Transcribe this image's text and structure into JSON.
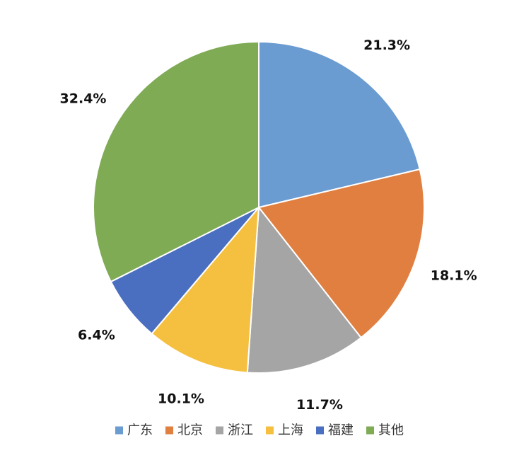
{
  "chart_data": {
    "type": "pie",
    "title": "",
    "slices": [
      {
        "name": "广东",
        "value": 21.3,
        "label": "21.3%",
        "color": "#6a9bd1"
      },
      {
        "name": "北京",
        "value": 18.1,
        "label": "18.1%",
        "color": "#e07f40"
      },
      {
        "name": "浙江",
        "value": 11.7,
        "label": "11.7%",
        "color": "#a5a5a5"
      },
      {
        "name": "上海",
        "value": 10.1,
        "label": "10.1%",
        "color": "#f5c040"
      },
      {
        "name": "福建",
        "value": 6.4,
        "label": "6.4%",
        "color": "#4a6fc0"
      },
      {
        "name": "其他",
        "value": 32.4,
        "label": "32.4%",
        "color": "#7fab55"
      }
    ],
    "start_angle": "12 o'clock",
    "direction": "clockwise",
    "legend_position": "bottom"
  }
}
